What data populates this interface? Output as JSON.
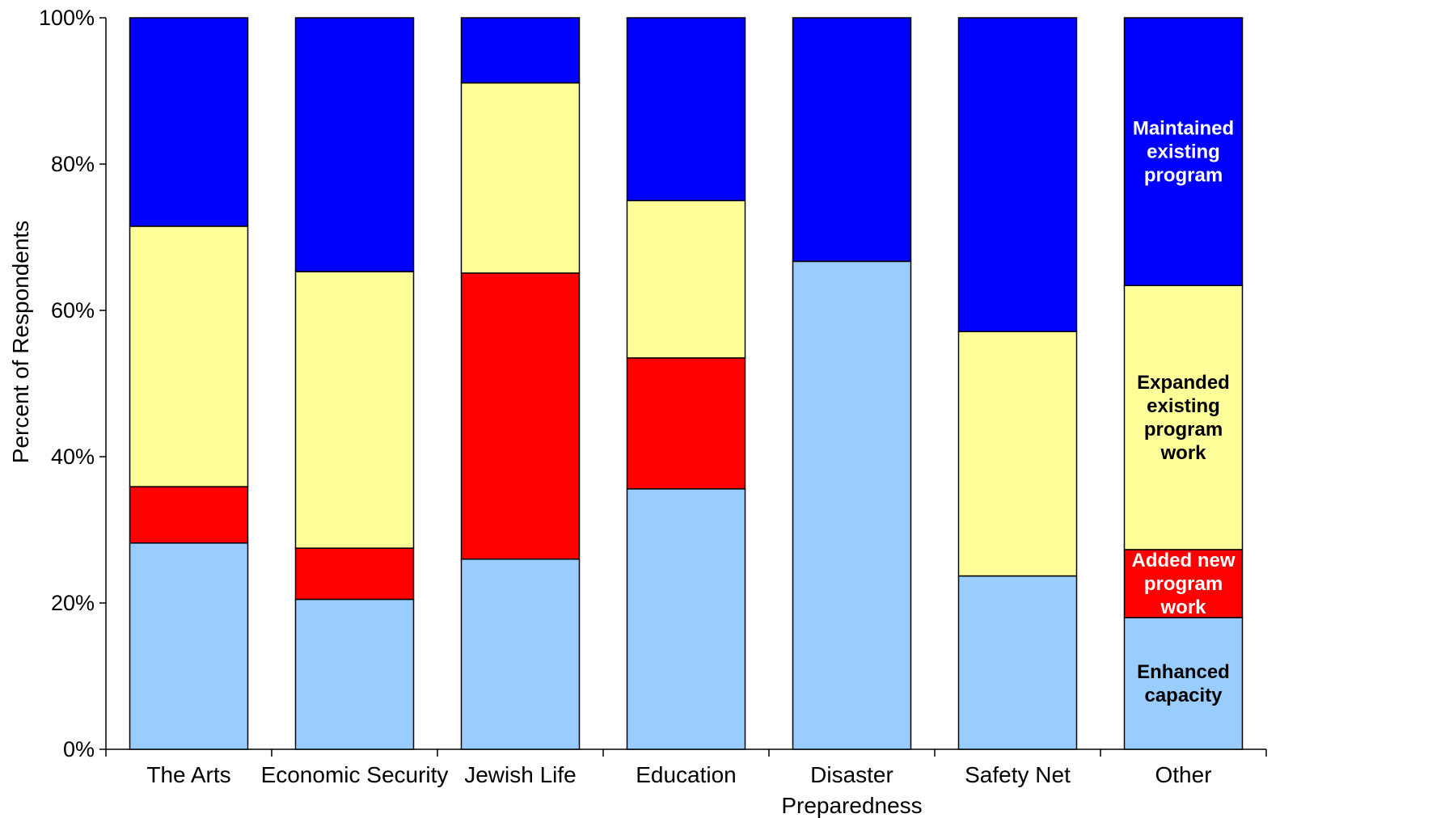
{
  "chart_data": {
    "type": "bar",
    "stacked": true,
    "percent": true,
    "ylabel": "Percent of Respondents",
    "ylim": [
      0,
      100
    ],
    "yticks": [
      "0%",
      "20%",
      "40%",
      "60%",
      "80%",
      "100%"
    ],
    "categories": [
      [
        "The Arts"
      ],
      [
        "Economic Security"
      ],
      [
        "Jewish Life"
      ],
      [
        "Education"
      ],
      [
        "Disaster",
        "Preparedness"
      ],
      [
        "Safety Net"
      ],
      [
        "Other"
      ]
    ],
    "series": [
      {
        "name": "Enhanced capacity",
        "label_lines": [
          "Enhanced",
          "capacity"
        ],
        "color": "#99ccff",
        "label_color": "#000000",
        "values": [
          28.2,
          20.5,
          26.0,
          35.6,
          66.7,
          23.7,
          18.0
        ]
      },
      {
        "name": "Added new program work",
        "label_lines": [
          "Added new",
          "program",
          "work"
        ],
        "color": "#ff0000",
        "label_color": "#ffffff",
        "values": [
          7.7,
          7.0,
          39.1,
          17.9,
          0,
          0,
          9.3
        ]
      },
      {
        "name": "Expanded existing program work",
        "label_lines": [
          "Expanded",
          "existing",
          "program",
          "work"
        ],
        "color": "#ffff99",
        "label_color": "#000000",
        "values": [
          35.6,
          37.8,
          26.0,
          21.5,
          0,
          33.4,
          36.1
        ]
      },
      {
        "name": "Maintained existing program",
        "label_lines": [
          "Maintained",
          "existing",
          "program"
        ],
        "color": "#0000ff",
        "label_color": "#ffffff",
        "values": [
          28.5,
          34.7,
          8.9,
          25.0,
          33.3,
          42.9,
          36.6
        ]
      }
    ],
    "labels_on_category": "Other",
    "grid": false,
    "legend": "inline labels on last bar"
  }
}
